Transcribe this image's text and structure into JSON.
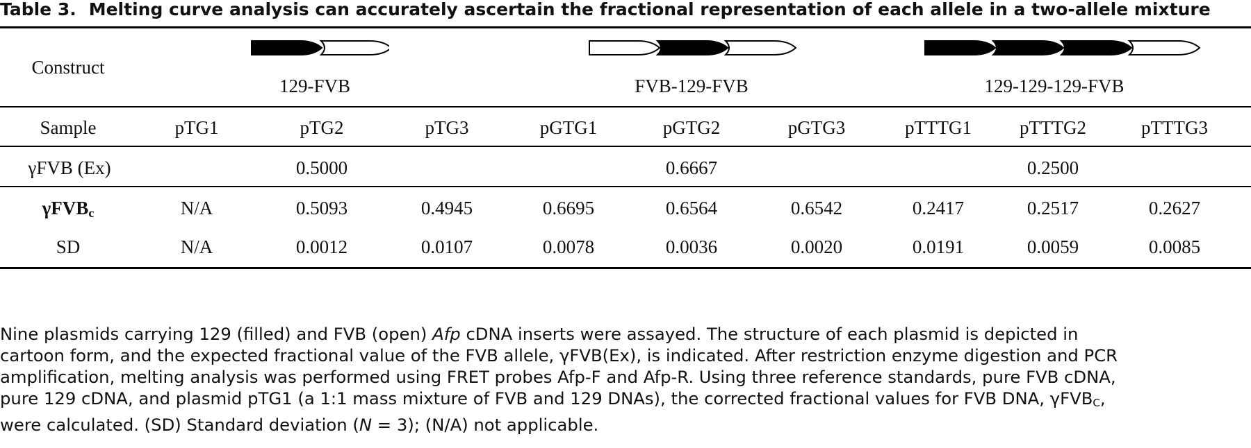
{
  "title": {
    "number": "Table 3.",
    "text": "Melting curve analysis can accurately ascertain the fractional representation of each allele in a two-allele mixture"
  },
  "construct_row": {
    "label": "Construct",
    "constructs": [
      {
        "name": "129-FVB",
        "segments": [
          "129",
          "FVB"
        ]
      },
      {
        "name": "FVB-129-FVB",
        "segments": [
          "FVB",
          "129",
          "FVB"
        ]
      },
      {
        "name": "129-129-129-FVB",
        "segments": [
          "129",
          "129",
          "129",
          "FVB"
        ]
      }
    ],
    "fill_129": "#000000",
    "fill_FVB": "#ffffff"
  },
  "columns": [
    "Sample",
    "pTG1",
    "pTG2",
    "pTG3",
    "pGTG1",
    "pGTG2",
    "pGTG3",
    "pTTTG1",
    "pTTTG2",
    "pTTTG3"
  ],
  "rows": {
    "expected": {
      "label_main": "γFVB (Ex)",
      "values": [
        "0.5000",
        "0.6667",
        "0.2500"
      ]
    },
    "corrected": {
      "label_main": "γFVB",
      "label_sub": "c",
      "values": [
        "N/A",
        "0.5093",
        "0.4945",
        "0.6695",
        "0.6564",
        "0.6542",
        "0.2417",
        "0.2517",
        "0.2627"
      ]
    },
    "sd": {
      "label_main": "SD",
      "values": [
        "N/A",
        "0.0012",
        "0.0107",
        "0.0078",
        "0.0036",
        "0.0020",
        "0.0191",
        "0.0059",
        "0.0085"
      ]
    }
  },
  "caption": {
    "l1a": "Nine plasmids carrying 129 (filled) and FVB (open) ",
    "l1b": "Afp",
    "l1c": " cDNA inserts were assayed. The structure of each plasmid is depicted in",
    "l2": "cartoon form, and the expected fractional value of the FVB allele, γFVB(Ex), is indicated. After restriction enzyme digestion and PCR",
    "l3": "amplification, melting analysis was performed using FRET probes Afp-F and Afp-R. Using three reference standards, pure FVB cDNA,",
    "l4a": "pure 129 cDNA, and plasmid pTG1 (a 1:1 mass mixture of FVB and 129 DNAs), the corrected fractional values for FVB DNA, γFVB",
    "l4sub": "C",
    "l4b": ",",
    "l5a": "were calculated. (SD) Standard deviation (",
    "l5n": "N",
    "l5b": " = 3); (N/A) not applicable."
  }
}
